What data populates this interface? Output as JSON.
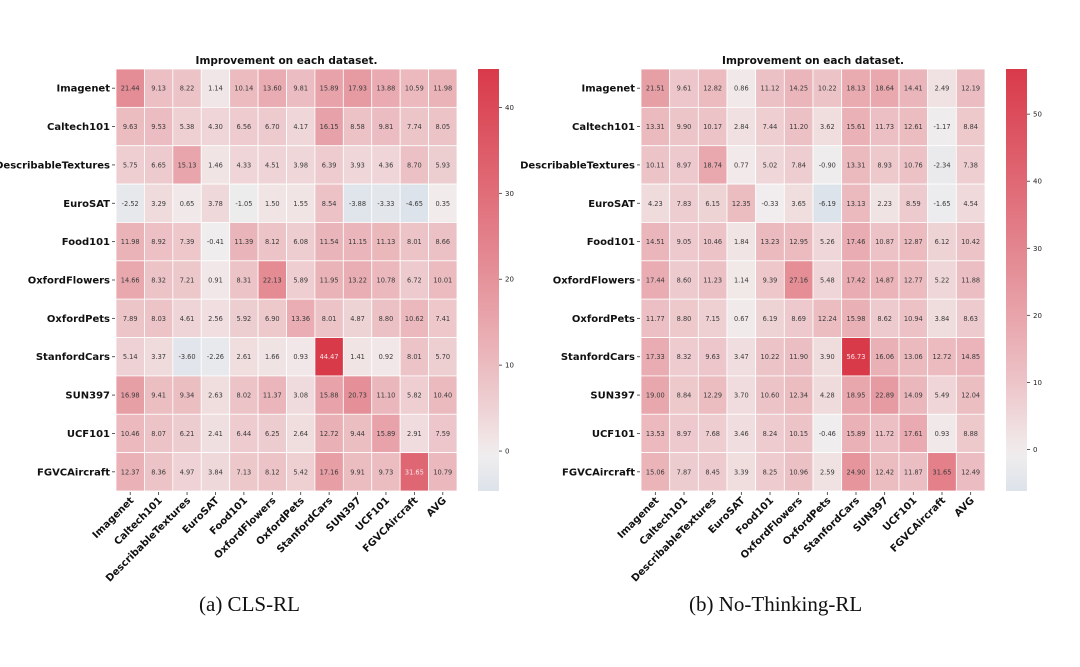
{
  "chart_data": [
    {
      "type": "heatmap",
      "title": "Improvement on each dataset.",
      "caption": "(a) CLS-RL",
      "rows": [
        "Imagenet",
        "Caltech101",
        "DescribableTextures",
        "EuroSAT",
        "Food101",
        "OxfordFlowers",
        "OxfordPets",
        "StanfordCars",
        "SUN397",
        "UCF101",
        "FGVCAircraft"
      ],
      "columns": [
        "Imagenet",
        "Caltech101",
        "DescribableTextures",
        "EuroSAT",
        "Food101",
        "OxfordFlowers",
        "OxfordPets",
        "StanfordCars",
        "SUN397",
        "UCF101",
        "FGVCAircraft",
        "AVG"
      ],
      "values": [
        [
          21.44,
          9.13,
          8.22,
          1.14,
          10.14,
          13.6,
          9.81,
          15.89,
          17.93,
          13.88,
          10.59,
          11.98
        ],
        [
          9.63,
          9.53,
          5.38,
          4.3,
          6.56,
          6.7,
          4.17,
          16.15,
          8.58,
          9.81,
          7.74,
          8.05
        ],
        [
          5.75,
          6.65,
          15.13,
          1.46,
          4.33,
          4.51,
          3.98,
          6.39,
          3.93,
          4.36,
          8.7,
          5.93
        ],
        [
          -2.52,
          3.29,
          0.65,
          3.78,
          -1.05,
          1.5,
          1.55,
          8.54,
          -3.88,
          -3.33,
          -4.65,
          0.35
        ],
        [
          11.98,
          8.92,
          7.39,
          -0.41,
          11.39,
          8.12,
          6.08,
          11.54,
          11.15,
          11.13,
          8.01,
          8.66
        ],
        [
          14.66,
          8.32,
          7.21,
          0.91,
          8.31,
          22.13,
          5.89,
          11.95,
          13.22,
          10.78,
          6.72,
          10.01
        ],
        [
          7.89,
          8.03,
          4.61,
          2.56,
          5.92,
          6.9,
          13.36,
          8.01,
          4.87,
          8.8,
          10.62,
          7.41
        ],
        [
          5.14,
          3.37,
          -3.6,
          -2.26,
          2.61,
          1.66,
          0.93,
          44.47,
          1.41,
          0.92,
          8.01,
          5.7
        ],
        [
          16.98,
          9.41,
          9.34,
          2.63,
          8.02,
          11.37,
          3.08,
          15.88,
          20.73,
          11.1,
          5.82,
          10.4
        ],
        [
          10.46,
          8.07,
          6.21,
          2.41,
          6.44,
          6.25,
          2.64,
          12.72,
          9.44,
          15.89,
          2.91,
          7.59
        ],
        [
          12.37,
          8.36,
          4.97,
          3.84,
          7.13,
          8.12,
          5.42,
          17.16,
          9.91,
          9.73,
          31.65,
          10.79
        ]
      ],
      "colorbar": {
        "min": -4.65,
        "max": 44.47,
        "ticks": [
          0,
          10,
          20,
          30,
          40
        ],
        "low_color": "#dde3ea",
        "mid_color": "#f2eeee",
        "high_color": "#d93a4a"
      },
      "annotations": true
    },
    {
      "type": "heatmap",
      "title": "Improvement on each dataset.",
      "caption": "(b) No-Thinking-RL",
      "rows": [
        "Imagenet",
        "Caltech101",
        "DescribableTextures",
        "EuroSAT",
        "Food101",
        "OxfordFlowers",
        "OxfordPets",
        "StanfordCars",
        "SUN397",
        "UCF101",
        "FGVCAircraft"
      ],
      "columns": [
        "Imagenet",
        "Caltech101",
        "DescribableTextures",
        "EuroSAT",
        "Food101",
        "OxfordFlowers",
        "OxfordPets",
        "StanfordCars",
        "SUN397",
        "UCF101",
        "FGVCAircraft",
        "AVG"
      ],
      "values": [
        [
          21.51,
          9.61,
          12.82,
          0.86,
          11.12,
          14.25,
          10.22,
          18.13,
          18.64,
          14.41,
          2.49,
          12.19
        ],
        [
          13.31,
          9.9,
          10.17,
          2.84,
          7.44,
          11.2,
          3.62,
          15.61,
          11.73,
          12.61,
          -1.17,
          8.84
        ],
        [
          10.11,
          8.97,
          18.74,
          0.77,
          5.02,
          7.84,
          -0.9,
          13.31,
          8.93,
          10.76,
          -2.34,
          7.38
        ],
        [
          4.23,
          7.83,
          6.15,
          12.35,
          -0.33,
          3.65,
          -6.19,
          13.13,
          2.23,
          8.59,
          -1.65,
          4.54
        ],
        [
          14.51,
          9.05,
          10.46,
          1.84,
          13.23,
          12.95,
          5.26,
          17.46,
          10.87,
          12.87,
          6.12,
          10.42
        ],
        [
          17.44,
          8.6,
          11.23,
          1.14,
          9.39,
          27.16,
          5.48,
          17.42,
          14.87,
          12.77,
          5.22,
          11.88
        ],
        [
          11.77,
          8.8,
          7.15,
          0.67,
          6.19,
          8.69,
          12.24,
          15.98,
          8.62,
          10.94,
          3.84,
          8.63
        ],
        [
          17.33,
          8.32,
          9.63,
          3.47,
          10.22,
          11.9,
          3.9,
          56.73,
          16.06,
          13.06,
          12.72,
          14.85
        ],
        [
          19.0,
          8.84,
          12.29,
          3.7,
          10.6,
          12.34,
          4.28,
          18.95,
          22.89,
          14.09,
          5.49,
          12.04
        ],
        [
          13.53,
          8.97,
          7.68,
          3.46,
          8.24,
          10.15,
          -0.46,
          15.89,
          11.72,
          17.61,
          0.93,
          8.88
        ],
        [
          15.06,
          7.87,
          8.45,
          3.39,
          8.25,
          10.96,
          2.59,
          24.9,
          12.42,
          11.87,
          31.65,
          12.49
        ]
      ],
      "colorbar": {
        "min": -6.19,
        "max": 56.73,
        "ticks": [
          0,
          10,
          20,
          30,
          40,
          50
        ],
        "low_color": "#dde3ea",
        "mid_color": "#f2eeee",
        "high_color": "#d93a4a"
      },
      "annotations": true
    }
  ]
}
